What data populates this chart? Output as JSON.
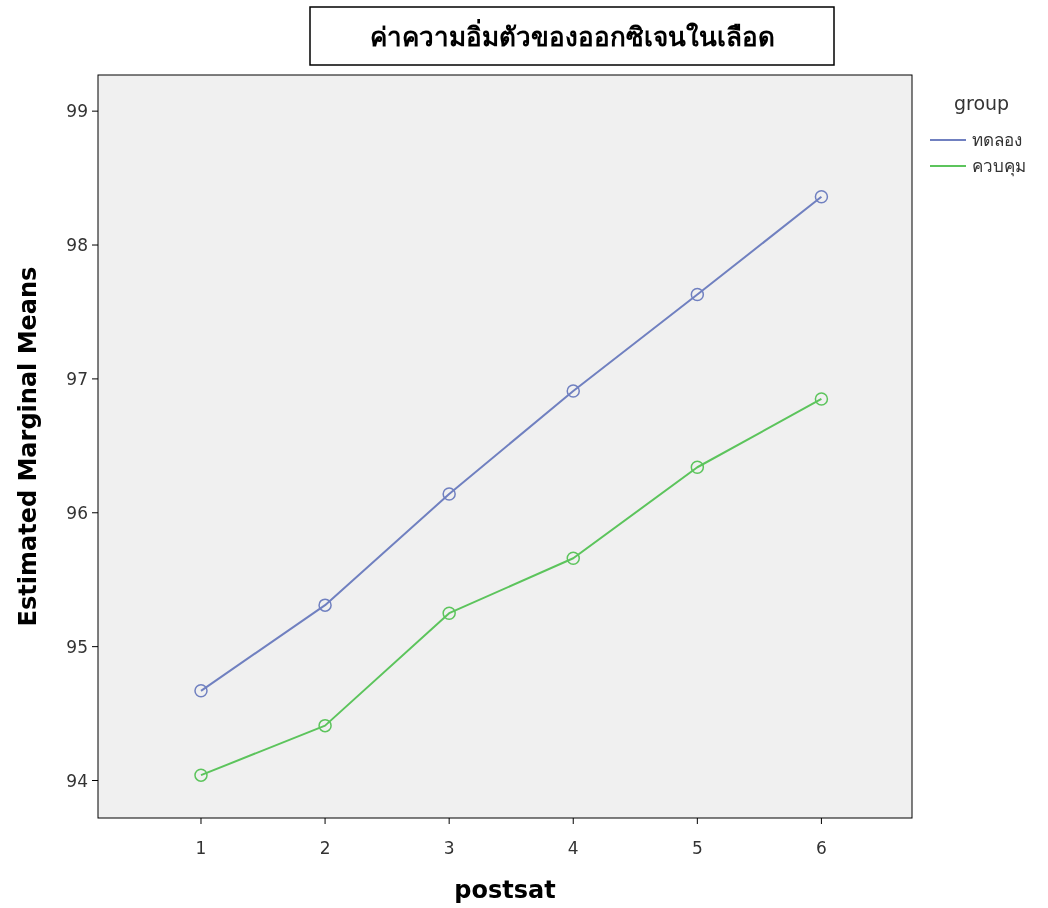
{
  "chart_data": {
    "type": "line",
    "title": "ค่าความอิ่มตัวของออกซิเจนในเลือด",
    "xlabel": "postsat",
    "ylabel": "Estimated Marginal Means",
    "legend_title": "group",
    "x": [
      1,
      2,
      3,
      4,
      5,
      6
    ],
    "series": [
      {
        "name": "ทดลอง",
        "color": "#7080c0",
        "values": [
          94.67,
          95.31,
          96.14,
          96.91,
          97.63,
          98.36
        ]
      },
      {
        "name": "ควบคุม",
        "color": "#5cc45c",
        "values": [
          94.04,
          94.41,
          95.25,
          95.66,
          96.34,
          96.85
        ]
      }
    ],
    "xlim": [
      0.17,
      6.73
    ],
    "ylim": [
      93.72,
      99.27
    ],
    "xticks": [
      1,
      2,
      3,
      4,
      5,
      6
    ],
    "yticks": [
      94,
      95,
      96,
      97,
      98,
      99
    ],
    "grid": false,
    "legend": "top right",
    "marker": "circle",
    "line_style": "solid"
  }
}
